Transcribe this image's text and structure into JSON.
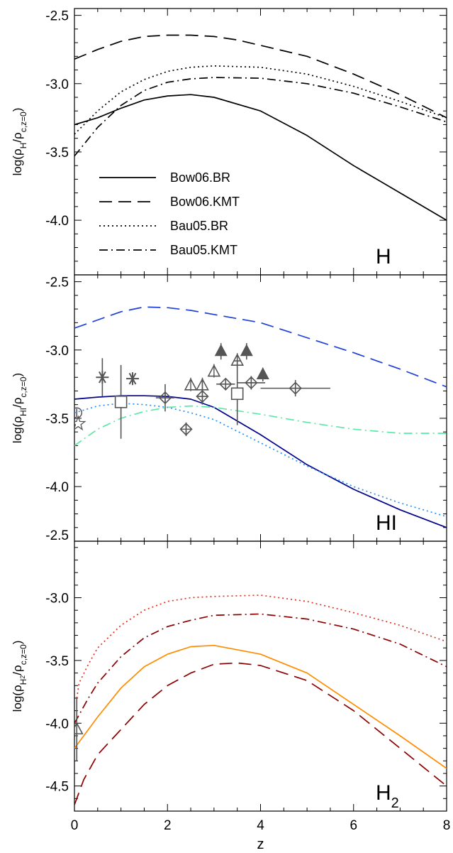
{
  "figure": {
    "xlabel": "z",
    "xlim": [
      0,
      8
    ],
    "xticks": [
      0,
      2,
      4,
      6,
      8
    ]
  },
  "chart_data": [
    {
      "type": "line",
      "panel_label": "H",
      "ylabel": "log(ρH/ρc,z=0)",
      "ylim": [
        -4.4,
        -2.45
      ],
      "yticks": [
        -2.5,
        -3.0,
        -3.5,
        -4.0
      ],
      "legend": "bottom-left",
      "series": [
        {
          "name": "Bow06.BR",
          "dash": "solid",
          "color": "#000000",
          "x": [
            0,
            0.5,
            1,
            1.5,
            2,
            2.5,
            3,
            4,
            5,
            6,
            7,
            8
          ],
          "y": [
            -3.3,
            -3.25,
            -3.18,
            -3.12,
            -3.09,
            -3.08,
            -3.1,
            -3.2,
            -3.38,
            -3.6,
            -3.8,
            -4.0
          ]
        },
        {
          "name": "Bow06.KMT",
          "dash": "long-dash",
          "color": "#000000",
          "x": [
            0,
            0.5,
            1,
            1.5,
            2,
            2.5,
            3,
            3.5,
            4,
            5,
            6,
            7,
            8
          ],
          "y": [
            -2.82,
            -2.75,
            -2.69,
            -2.655,
            -2.645,
            -2.645,
            -2.655,
            -2.68,
            -2.72,
            -2.8,
            -2.93,
            -3.08,
            -3.25
          ]
        },
        {
          "name": "Bau05.BR",
          "dash": "dotted",
          "color": "#000000",
          "x": [
            0,
            0.5,
            1,
            1.5,
            2,
            2.5,
            3,
            4,
            5,
            6,
            7,
            8
          ],
          "y": [
            -3.37,
            -3.2,
            -3.06,
            -2.97,
            -2.91,
            -2.88,
            -2.87,
            -2.88,
            -2.93,
            -3.02,
            -3.13,
            -3.25
          ]
        },
        {
          "name": "Bau05.KMT",
          "dash": "dash-dot",
          "color": "#000000",
          "x": [
            0,
            0.5,
            1,
            1.5,
            2,
            2.5,
            3,
            4,
            5,
            6,
            7,
            8
          ],
          "y": [
            -3.53,
            -3.32,
            -3.16,
            -3.05,
            -2.99,
            -2.965,
            -2.955,
            -2.96,
            -3.0,
            -3.07,
            -3.17,
            -3.28
          ]
        }
      ]
    },
    {
      "type": "line",
      "panel_label": "HI",
      "ylabel": "log(ρHI/ρc,z=0)",
      "ylim": [
        -4.4,
        -2.45
      ],
      "yticks": [
        -2.5,
        -3.0,
        -3.5,
        -4.0
      ],
      "series": [
        {
          "dash": "solid",
          "color": "#00008B",
          "x": [
            0,
            0.5,
            1,
            1.5,
            2,
            2.5,
            3,
            4,
            5,
            6,
            7,
            8
          ],
          "y": [
            -3.36,
            -3.345,
            -3.335,
            -3.335,
            -3.34,
            -3.36,
            -3.42,
            -3.62,
            -3.84,
            -4.02,
            -4.17,
            -4.3
          ]
        },
        {
          "dash": "long-dash",
          "color": "#1E3FD8",
          "x": [
            0,
            0.5,
            1,
            1.5,
            2,
            2.5,
            3,
            4,
            5,
            6,
            7,
            8
          ],
          "y": [
            -2.84,
            -2.78,
            -2.72,
            -2.685,
            -2.69,
            -2.71,
            -2.74,
            -2.8,
            -2.91,
            -3.02,
            -3.14,
            -3.27
          ]
        },
        {
          "dash": "dotted",
          "color": "#1E90FF",
          "x": [
            0,
            0.5,
            1,
            1.5,
            2,
            2.5,
            3,
            4,
            5,
            6,
            7,
            8
          ],
          "y": [
            -3.46,
            -3.41,
            -3.39,
            -3.4,
            -3.42,
            -3.46,
            -3.51,
            -3.68,
            -3.85,
            -4.0,
            -4.12,
            -4.22
          ]
        },
        {
          "dash": "dash-dot",
          "color": "#5EE8A8",
          "x": [
            0,
            0.5,
            1,
            1.5,
            2,
            2.5,
            3,
            4,
            5,
            6,
            7,
            8
          ],
          "y": [
            -3.7,
            -3.58,
            -3.5,
            -3.45,
            -3.42,
            -3.41,
            -3.42,
            -3.47,
            -3.53,
            -3.58,
            -3.61,
            -3.61
          ]
        }
      ],
      "observations": [
        {
          "marker": "circle",
          "x": 0.05,
          "y": -3.46,
          "xerr": 0,
          "yerr": 0.03
        },
        {
          "marker": "star",
          "x": 0.08,
          "y": -3.54,
          "xerr": 0,
          "yerr": 0
        },
        {
          "marker": "asterisk",
          "x": 0.6,
          "y": -3.2,
          "xerr": 0,
          "yerr": 0.14
        },
        {
          "marker": "asterisk",
          "x": 1.25,
          "y": -3.21,
          "xerr": 0,
          "yerr": 0
        },
        {
          "marker": "square",
          "x": 1.0,
          "y": -3.38,
          "xerr": 0,
          "yerr": 0.27
        },
        {
          "marker": "diamond-cross",
          "x": 1.95,
          "y": -3.35,
          "xerr": 0.2,
          "yerr": 0.1
        },
        {
          "marker": "diamond-cross",
          "x": 2.4,
          "y": -3.58,
          "xerr": 0,
          "yerr": 0.05
        },
        {
          "marker": "triangle-cross",
          "x": 2.5,
          "y": -3.26,
          "xerr": 0,
          "yerr": 0
        },
        {
          "marker": "triangle-cross",
          "x": 2.75,
          "y": -3.26,
          "xerr": 0,
          "yerr": 0.05
        },
        {
          "marker": "diamond-cross",
          "x": 2.75,
          "y": -3.34,
          "xerr": 0.12,
          "yerr": 0.06
        },
        {
          "marker": "triangle-cross",
          "x": 3.0,
          "y": -3.16,
          "xerr": 0,
          "yerr": 0
        },
        {
          "marker": "diamond-cross",
          "x": 3.25,
          "y": -3.25,
          "xerr": 0.2,
          "yerr": 0.04
        },
        {
          "marker": "triangle-cross",
          "x": 3.5,
          "y": -3.08,
          "xerr": 0.08,
          "yerr": 0.05
        },
        {
          "marker": "square",
          "x": 3.5,
          "y": -3.32,
          "xerr": 0,
          "yerr": 0.23
        },
        {
          "marker": "triangle-filled",
          "x": 3.15,
          "y": -3.01,
          "xerr": 0,
          "yerr": 0.06
        },
        {
          "marker": "triangle-filled",
          "x": 3.7,
          "y": -3.01,
          "xerr": 0,
          "yerr": 0.06
        },
        {
          "marker": "triangle-filled",
          "x": 4.05,
          "y": -3.18,
          "xerr": 0,
          "yerr": 0.05
        },
        {
          "marker": "diamond-cross",
          "x": 3.8,
          "y": -3.24,
          "xerr": 0.3,
          "yerr": 0.05
        },
        {
          "marker": "diamond-cross",
          "x": 4.75,
          "y": -3.28,
          "xerr": 0.75,
          "yerr": 0.06
        }
      ]
    },
    {
      "type": "line",
      "panel_label": "H2",
      "ylabel": "log(ρH2/ρc,z=0)",
      "ylim": [
        -4.7,
        -2.55
      ],
      "yticks": [
        -2.5,
        -3.0,
        -3.5,
        -4.0,
        -4.5
      ],
      "series": [
        {
          "dash": "solid",
          "color": "#FF8C00",
          "x": [
            0,
            0.1,
            0.3,
            0.5,
            1,
            1.5,
            2,
            2.5,
            3,
            4,
            5,
            6,
            7,
            8
          ],
          "y": [
            -4.2,
            -4.15,
            -4.05,
            -3.95,
            -3.72,
            -3.55,
            -3.45,
            -3.39,
            -3.38,
            -3.45,
            -3.6,
            -3.85,
            -4.1,
            -4.36
          ]
        },
        {
          "dash": "dotted",
          "color": "#E0301E",
          "x": [
            0.05,
            0.1,
            0.3,
            0.5,
            1,
            1.5,
            2,
            2.5,
            3,
            4,
            5,
            6,
            7,
            8
          ],
          "y": [
            -3.8,
            -3.68,
            -3.53,
            -3.4,
            -3.22,
            -3.1,
            -3.03,
            -3.0,
            -2.99,
            -2.98,
            -3.03,
            -3.12,
            -3.22,
            -3.35
          ]
        },
        {
          "dash": "dash-dot",
          "color": "#8B0000",
          "x": [
            0,
            0.3,
            0.5,
            1,
            1.5,
            2,
            2.5,
            3,
            4,
            5,
            6,
            7,
            8
          ],
          "y": [
            -4.0,
            -3.8,
            -3.68,
            -3.47,
            -3.32,
            -3.23,
            -3.18,
            -3.14,
            -3.13,
            -3.17,
            -3.25,
            -3.37,
            -3.55
          ]
        },
        {
          "dash": "long-dash",
          "color": "#8B0000",
          "x": [
            0,
            0.2,
            0.5,
            1,
            1.5,
            2,
            2.5,
            3,
            3.5,
            4,
            5,
            6,
            7,
            8
          ],
          "y": [
            -4.65,
            -4.45,
            -4.25,
            -4.05,
            -3.85,
            -3.7,
            -3.6,
            -3.53,
            -3.52,
            -3.54,
            -3.66,
            -3.9,
            -4.2,
            -4.5
          ]
        }
      ],
      "observations": [
        {
          "marker": "triangle",
          "x": 0.05,
          "y": -4.05,
          "xerr": 0,
          "yerr": 0.25
        }
      ]
    }
  ]
}
